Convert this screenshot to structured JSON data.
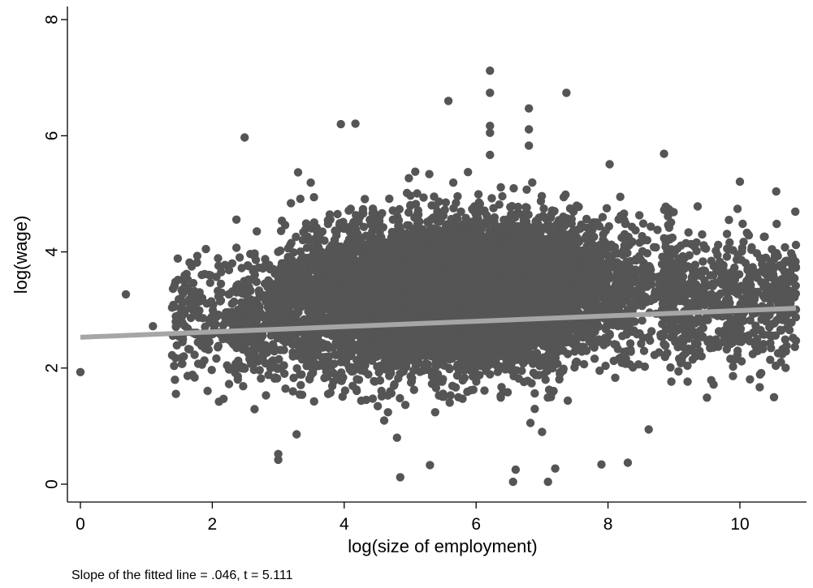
{
  "chart_data": {
    "type": "scatter",
    "xlabel": "log(size of employment)",
    "ylabel": "log(wage)",
    "note": "Slope of the fitted line = .046, t = 5.111",
    "xlim": [
      -0.25,
      11.1
    ],
    "ylim": [
      -0.35,
      8.2
    ],
    "x_ticks": [
      0,
      2,
      4,
      6,
      8,
      10
    ],
    "y_ticks": [
      0,
      2,
      4,
      6,
      8
    ],
    "x_tick_labels": [
      "0",
      "2",
      "4",
      "6",
      "8",
      "10"
    ],
    "y_tick_labels": [
      "0",
      "2",
      "4",
      "6",
      "8"
    ],
    "grid": false,
    "point_color": "#555555",
    "fit_line_color": "#a6a6a6",
    "fit_line": {
      "slope": 0.046,
      "intercept": 2.53,
      "x_range": [
        0,
        10.85
      ]
    },
    "highlighted_points": [
      [
        0,
        1.93
      ],
      [
        0.69,
        3.27
      ],
      [
        1.1,
        2.72
      ],
      [
        1.39,
        2.22
      ],
      [
        1.39,
        3.04
      ],
      [
        1.61,
        3.62
      ],
      [
        2.49,
        5.97
      ],
      [
        3.0,
        0.52
      ],
      [
        3.0,
        0.42
      ],
      [
        3.3,
        5.37
      ],
      [
        3.95,
        6.2
      ],
      [
        4.17,
        6.21
      ],
      [
        4.85,
        0.12
      ],
      [
        5.3,
        0.33
      ],
      [
        5.58,
        6.6
      ],
      [
        6.21,
        7.12
      ],
      [
        6.21,
        6.74
      ],
      [
        6.21,
        6.17
      ],
      [
        6.21,
        6.05
      ],
      [
        6.21,
        5.67
      ],
      [
        6.56,
        0.04
      ],
      [
        6.8,
        6.47
      ],
      [
        6.8,
        6.11
      ],
      [
        6.8,
        5.83
      ],
      [
        7.09,
        0.04
      ],
      [
        7.37,
        6.74
      ],
      [
        7.2,
        0.27
      ],
      [
        8.85,
        5.69
      ],
      [
        10.3,
        1.67
      ],
      [
        10.55,
        5.04
      ],
      [
        9.5,
        1.49
      ],
      [
        10.0,
        5.21
      ],
      [
        10.85,
        2.47
      ],
      [
        10.85,
        3.73
      ],
      [
        10.85,
        4.12
      ],
      [
        8.3,
        0.37
      ],
      [
        7.9,
        0.34
      ],
      [
        7.0,
        0.9
      ],
      [
        6.6,
        0.25
      ],
      [
        4.8,
        0.8
      ]
    ],
    "random_seed": 7,
    "synthetic_point_count": 9000
  }
}
